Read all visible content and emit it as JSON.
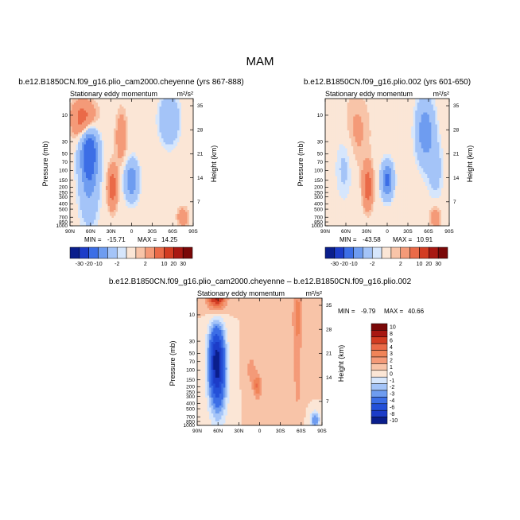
{
  "page_title": "MAM",
  "chart_data": [
    {
      "type": "heatmap",
      "title": "b.e12.B1850CN.f09_g16.plio_cam2000.cheyenne (yrs 867-888)",
      "left_subtitle": "Stationary eddy momentum",
      "right_subtitle": "m²/s²",
      "xlabel": "",
      "ylabel": "Pressure (mb)",
      "ylabel_right": "Height (km)",
      "x_ticks": [
        "90N",
        "60N",
        "30N",
        "0",
        "30S",
        "60S",
        "90S"
      ],
      "y_ticks": [
        "10",
        "30",
        "50",
        "70",
        "100",
        "150",
        "200",
        "250",
        "300",
        "400",
        "500",
        "700",
        "850",
        "1000"
      ],
      "y_right_ticks": [
        "35",
        "28",
        "21",
        "14",
        "7"
      ],
      "stats": {
        "min_label": "MIN = ",
        "min": "-15.71",
        "max_label": "MAX = ",
        "max": "14.25"
      },
      "colorbar_labels": [
        "-30",
        "-20",
        "-10",
        "-2",
        "2",
        "10",
        "20",
        "30"
      ],
      "colorbar_colors": [
        "#0a1e8c",
        "#1c3cc8",
        "#3c6ee6",
        "#6e9cf0",
        "#a4c4f8",
        "#d6e6fc",
        "#fbe6d6",
        "#f8c4a8",
        "#f49a78",
        "#ea6a48",
        "#d23c22",
        "#a81812",
        "#7a0808"
      ],
      "features": [
        {
          "lat": 62,
          "p": 40,
          "value": -12,
          "sx": 9,
          "sy": 0.9
        },
        {
          "lat": 62,
          "p": 150,
          "value": -6,
          "sx": 10,
          "sy": 1.3
        },
        {
          "lat": 68,
          "p": 12,
          "value": 11,
          "sx": 12,
          "sy": 0.55
        },
        {
          "lat": 0,
          "p": 150,
          "value": -10,
          "sx": 7,
          "sy": 0.55
        },
        {
          "lat": 28,
          "p": 200,
          "value": 9,
          "sx": 5,
          "sy": 0.6
        },
        {
          "lat": -55,
          "p": 12,
          "value": -6,
          "sx": 10,
          "sy": 0.7
        },
        {
          "lat": 15,
          "p": 25,
          "value": 4,
          "sx": 6,
          "sy": 0.8
        },
        {
          "lat": -75,
          "p": 700,
          "value": 4,
          "sx": 6,
          "sy": 0.3
        }
      ]
    },
    {
      "type": "heatmap",
      "title": "b.e12.B1850CN.f09_g16.plio.002 (yrs 601-650)",
      "left_subtitle": "Stationary eddy momentum",
      "right_subtitle": "m²/s²",
      "xlabel": "",
      "ylabel": "Pressure (mb)",
      "ylabel_right": "Height (km)",
      "x_ticks": [
        "90N",
        "60N",
        "30N",
        "0",
        "30S",
        "60S",
        "90S"
      ],
      "y_ticks": [
        "10",
        "30",
        "50",
        "70",
        "100",
        "150",
        "200",
        "250",
        "300",
        "400",
        "500",
        "700",
        "850",
        "1000"
      ],
      "y_right_ticks": [
        "35",
        "28",
        "21",
        "14",
        "7"
      ],
      "stats": {
        "min_label": "MIN = ",
        "min": "-43.58",
        "max_label": "MAX = ",
        "max": "10.91"
      },
      "colorbar_labels": [
        "-30",
        "-20",
        "-10",
        "-2",
        "2",
        "10",
        "20",
        "30"
      ],
      "colorbar_colors": [
        "#0a1e8c",
        "#1c3cc8",
        "#3c6ee6",
        "#6e9cf0",
        "#a4c4f8",
        "#d6e6fc",
        "#fbe6d6",
        "#f8c4a8",
        "#f49a78",
        "#ea6a48",
        "#d23c22",
        "#a81812",
        "#7a0808"
      ],
      "features": [
        {
          "lat": 62,
          "p": 80,
          "value": -3,
          "sx": 9,
          "sy": 1.0
        },
        {
          "lat": 0,
          "p": 150,
          "value": -12,
          "sx": 6,
          "sy": 0.5
        },
        {
          "lat": 28,
          "p": 200,
          "value": 9,
          "sx": 5,
          "sy": 0.6
        },
        {
          "lat": -55,
          "p": 20,
          "value": -9,
          "sx": 9,
          "sy": 0.9
        },
        {
          "lat": -70,
          "p": 100,
          "value": -3,
          "sx": 8,
          "sy": 0.9
        },
        {
          "lat": 45,
          "p": 20,
          "value": 2.5,
          "sx": 15,
          "sy": 1.2
        },
        {
          "lat": -70,
          "p": 700,
          "value": 4,
          "sx": 6,
          "sy": 0.35
        }
      ]
    },
    {
      "type": "heatmap",
      "title": "b.e12.B1850CN.f09_g16.plio_cam2000.cheyenne – b.e12.B1850CN.f09_g16.plio.002",
      "left_subtitle": "Stationary eddy momentum",
      "right_subtitle": "m²/s²",
      "xlabel": "",
      "ylabel": "Pressure (mb)",
      "ylabel_right": "Height (km)",
      "x_ticks": [
        "90N",
        "60N",
        "30N",
        "0",
        "30S",
        "60S",
        "90S"
      ],
      "y_ticks": [
        "10",
        "30",
        "50",
        "70",
        "100",
        "150",
        "200",
        "250",
        "300",
        "400",
        "500",
        "700",
        "850",
        "1000"
      ],
      "y_right_ticks": [
        "35",
        "28",
        "21",
        "14",
        "7"
      ],
      "stats": {
        "min_label": "MIN = ",
        "min": "-9.79",
        "max_label": "MAX = ",
        "max": "40.66"
      },
      "colorbar_labels": [
        "10",
        "8",
        "6",
        "4",
        "3",
        "2",
        "1",
        "0",
        "-1",
        "-2",
        "-3",
        "-4",
        "-6",
        "-8",
        "-10"
      ],
      "colorbar_colors": [
        "#7a0808",
        "#a81812",
        "#d23c22",
        "#ea6a48",
        "#f08458",
        "#f49a78",
        "#f8c4a8",
        "#fbe6d6",
        "#d6e6fc",
        "#a4c4f8",
        "#6e9cf0",
        "#3c6ee6",
        "#2450d8",
        "#1c3cc8",
        "#0a1e8c"
      ],
      "features": [
        {
          "lat": 62,
          "p": 60,
          "value": -9,
          "sx": 8,
          "sy": 1.0
        },
        {
          "lat": 60,
          "p": 200,
          "value": -4,
          "sx": 9,
          "sy": 1.1
        },
        {
          "lat": 62,
          "p": 3,
          "value": 10,
          "sx": 9,
          "sy": 0.6
        },
        {
          "lat": 3,
          "p": 200,
          "value": 3,
          "sx": 4,
          "sy": 0.35
        },
        {
          "lat": 12,
          "p": 100,
          "value": 1.5,
          "sx": 5,
          "sy": 0.5
        },
        {
          "lat": -55,
          "p": 10,
          "value": 2.5,
          "sx": 5,
          "sy": 0.9
        },
        {
          "lat": -55,
          "p": 150,
          "value": 1.2,
          "sx": 4,
          "sy": 1.2
        },
        {
          "lat": -80,
          "p": 800,
          "value": -4,
          "sx": 5,
          "sy": 0.25
        },
        {
          "lat": -30,
          "p": 100,
          "value": 0.6,
          "sx": 18,
          "sy": 1.4
        }
      ]
    }
  ]
}
